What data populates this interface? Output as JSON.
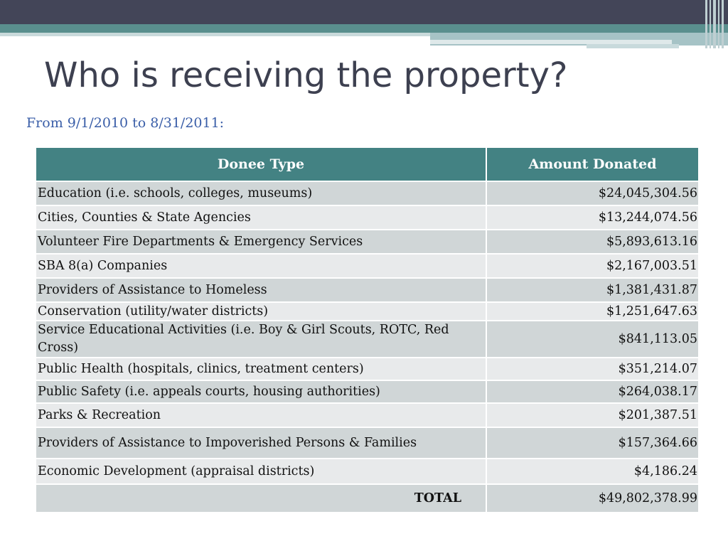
{
  "slide": {
    "title": "Who is receiving the property?",
    "subtitle": "From 9/1/2010 to 8/31/2011:"
  },
  "table": {
    "headers": [
      "Donee Type",
      "Amount Donated"
    ],
    "rows": [
      {
        "type": "Education (i.e. schools, colleges, museums)",
        "amount": "$24,045,304.56"
      },
      {
        "type": "Cities, Counties & State Agencies",
        "amount": "$13,244,074.56"
      },
      {
        "type": "Volunteer Fire Departments & Emergency Services",
        "amount": "$5,893,613.16"
      },
      {
        "type": "SBA 8(a) Companies",
        "amount": "$2,167,003.51"
      },
      {
        "type": "Providers of Assistance to Homeless",
        "amount": "$1,381,431.87"
      },
      {
        "type": "Conservation (utility/water districts)",
        "amount": "$1,251,647.63"
      },
      {
        "type": "Service Educational Activities (i.e. Boy & Girl Scouts, ROTC, Red Cross)",
        "amount": "$841,113.05"
      },
      {
        "type": "Public Health (hospitals, clinics, treatment centers)",
        "amount": "$351,214.07"
      },
      {
        "type": "Public Safety (i.e. appeals courts, housing authorities)",
        "amount": "$264,038.17"
      },
      {
        "type": "Parks & Recreation",
        "amount": "$201,387.51"
      },
      {
        "type": "Providers of Assistance to Impoverished Persons & Families",
        "amount": "$157,364.66"
      },
      {
        "type": "Economic Development (appraisal districts)",
        "amount": "$4,186.24"
      }
    ],
    "total": {
      "label": "TOTAL",
      "amount": "$49,802,378.99"
    }
  },
  "colors": {
    "header_bg": "#438283",
    "title_color": "#3d4050",
    "subtitle_color": "#3a5ea8",
    "row_odd": "#d0d6d7",
    "row_even": "#e8eaeb",
    "top_band": "#434558",
    "teal_band": "#5a8f8e"
  }
}
